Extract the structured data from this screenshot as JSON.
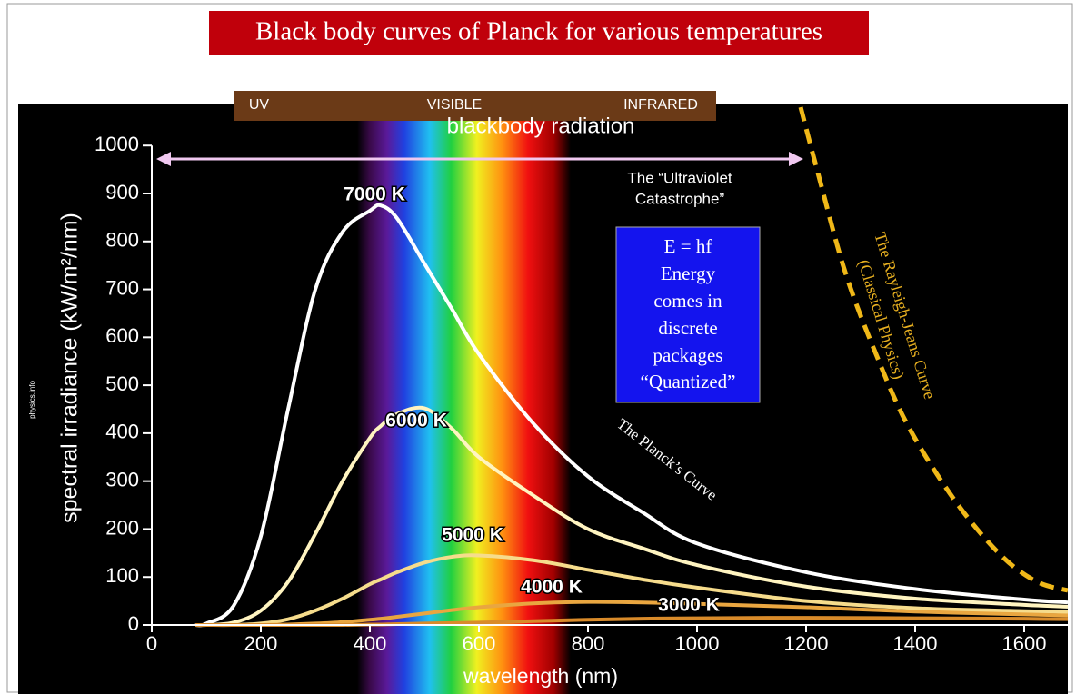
{
  "chart_data": {
    "type": "line",
    "title": "Black body curves of Planck for various temperatures",
    "region_labels": [
      "UV",
      "VISIBLE",
      "INFRARED"
    ],
    "top_label": "blackbody radiation",
    "uv_annotation": [
      "The “Ultraviolet",
      "Catastrophe”"
    ],
    "box_text": [
      "E = hf",
      "Energy",
      "comes in",
      "discrete",
      "packages",
      "“Quantized”"
    ],
    "planck_label": "The Planck’s Curve",
    "rj_label": [
      "The Rayleigh-Jeans Curve",
      "(Classical Physics)"
    ],
    "credit": "physics.info",
    "x_label": "wavelength (nm)",
    "y_label": "spectral irradiance (kW/m²/nm)",
    "xlim": [
      0,
      1680
    ],
    "ylim": [
      0,
      1080
    ],
    "xticks": [
      0,
      200,
      400,
      600,
      800,
      1000,
      1200,
      1400,
      1600
    ],
    "yticks": [
      0,
      100,
      200,
      300,
      400,
      500,
      600,
      700,
      800,
      900,
      1000
    ],
    "series": [
      {
        "name": "7000 K",
        "color": "#ffffff",
        "x": [
          80,
          100,
          150,
          200,
          250,
          300,
          350,
          400,
          420,
          450,
          500,
          550,
          600,
          700,
          800,
          900,
          1000,
          1200,
          1400,
          1600,
          1680
        ],
        "values": [
          0,
          3,
          40,
          185,
          450,
          700,
          820,
          864,
          875,
          848,
          754,
          660,
          565,
          420,
          310,
          235,
          170,
          110,
          75,
          53,
          47
        ]
      },
      {
        "name": "6000 K",
        "color": "#fff4c0",
        "x": [
          80,
          100,
          150,
          200,
          250,
          300,
          350,
          400,
          420,
          450,
          500,
          550,
          600,
          700,
          800,
          900,
          1000,
          1200,
          1400,
          1600,
          1680
        ],
        "values": [
          0,
          0,
          5,
          30,
          90,
          190,
          300,
          390,
          415,
          440,
          452,
          410,
          350,
          270,
          200,
          160,
          125,
          80,
          55,
          42,
          38
        ]
      },
      {
        "name": "5000 K",
        "color": "#f6dc8c",
        "x": [
          80,
          100,
          150,
          200,
          250,
          300,
          350,
          400,
          420,
          450,
          500,
          550,
          600,
          700,
          800,
          900,
          1000,
          1200,
          1400,
          1600,
          1680
        ],
        "values": [
          0,
          0,
          0,
          3,
          12,
          30,
          55,
          85,
          95,
          110,
          130,
          142,
          145,
          135,
          115,
          95,
          78,
          50,
          35,
          29,
          27
        ]
      },
      {
        "name": "4000 K",
        "color": "#e9a640",
        "x": [
          80,
          100,
          150,
          200,
          250,
          300,
          350,
          400,
          420,
          450,
          500,
          550,
          600,
          700,
          800,
          900,
          1000,
          1200,
          1400,
          1600,
          1680
        ],
        "values": [
          0,
          0,
          0,
          0,
          1,
          3,
          6,
          11,
          13,
          17,
          24,
          31,
          37,
          45,
          48,
          47,
          44,
          37,
          28,
          22,
          20
        ]
      },
      {
        "name": "3000 K",
        "color": "#d98b2a",
        "x": [
          80,
          100,
          150,
          200,
          250,
          300,
          350,
          400,
          420,
          450,
          500,
          550,
          600,
          700,
          800,
          900,
          1000,
          1200,
          1400,
          1600,
          1680
        ],
        "values": [
          0,
          0,
          0,
          0,
          0,
          0,
          0,
          1,
          1,
          2,
          3,
          4,
          5,
          8,
          11,
          13,
          14,
          15,
          14,
          13,
          12
        ]
      },
      {
        "name": "The Rayleigh-Jeans Curve",
        "color": "#f0b818",
        "dashed": true,
        "x": [
          1190,
          1220,
          1272,
          1330,
          1388,
          1472,
          1555,
          1622,
          1680
        ],
        "values": [
          1080,
          950,
          735,
          560,
          413,
          261,
          148,
          91,
          72
        ]
      }
    ]
  }
}
